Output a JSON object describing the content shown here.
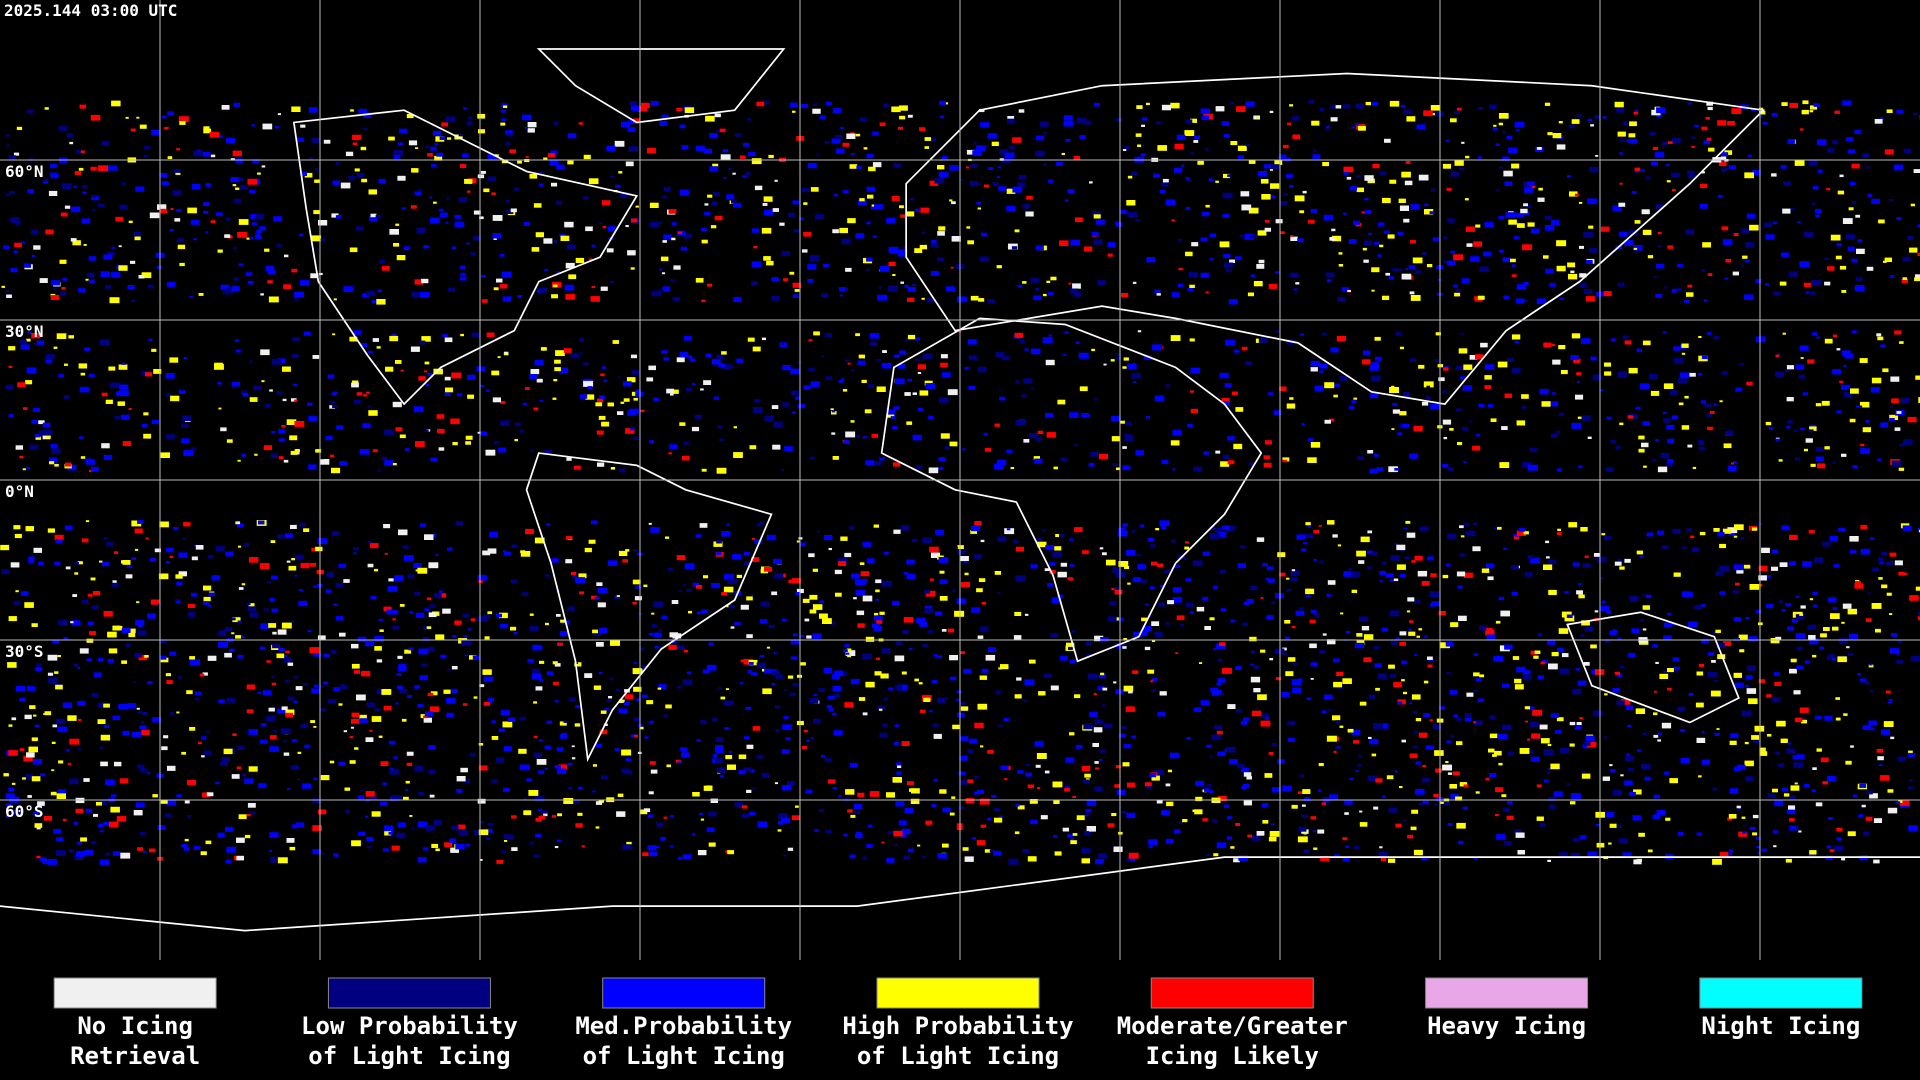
{
  "header": {
    "timestamp": "2025.144 03:00 UTC"
  },
  "latitude_labels": [
    "60°N",
    "30°N",
    "0°N",
    "30°S",
    "60°S"
  ],
  "legend": [
    {
      "lines": [
        "No Icing",
        "Retrieval"
      ],
      "color": "#f0f0f0"
    },
    {
      "lines": [
        "Low Probability",
        "of Light Icing"
      ],
      "color": "#000080"
    },
    {
      "lines": [
        "Med.Probability",
        "of Light Icing"
      ],
      "color": "#0000ff"
    },
    {
      "lines": [
        "High Probability",
        "of Light Icing"
      ],
      "color": "#ffff00"
    },
    {
      "lines": [
        "Moderate/Greater",
        "Icing Likely"
      ],
      "color": "#ff0000"
    },
    {
      "lines": [
        "Heavy Icing"
      ],
      "color": "#e8a8e8"
    },
    {
      "lines": [
        "Night Icing"
      ],
      "color": "#00ffff"
    }
  ]
}
